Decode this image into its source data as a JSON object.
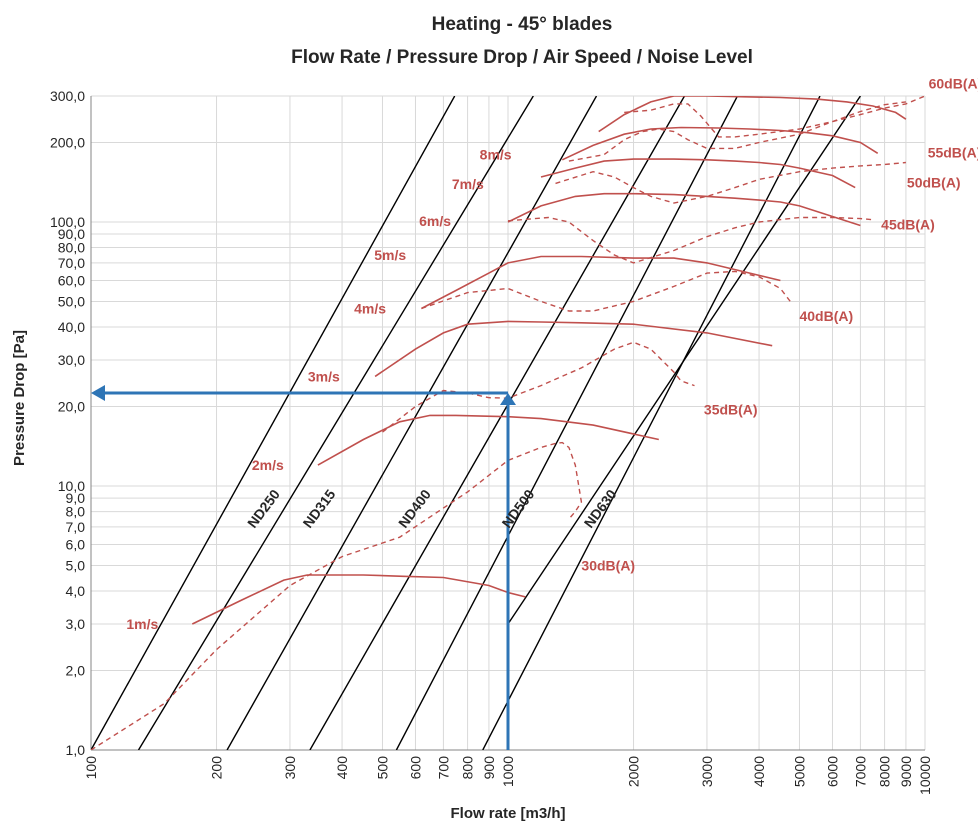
{
  "chart_data": {
    "type": "line",
    "title_line1": "Heating - 45° blades",
    "title_line2": "Flow Rate / Pressure Drop / Air Speed / Noise Level",
    "xlabel": "Flow rate [m3/h]",
    "ylabel": "Pressure Drop [Pa]",
    "x_scale": "log",
    "y_scale": "log",
    "xlim": [
      100,
      10000
    ],
    "ylim": [
      1,
      300
    ],
    "grid": true,
    "x_ticks": [
      {
        "v": 100,
        "label": "100"
      },
      {
        "v": 200,
        "label": "200"
      },
      {
        "v": 300,
        "label": "300"
      },
      {
        "v": 400,
        "label": "400"
      },
      {
        "v": 500,
        "label": "500"
      },
      {
        "v": 600,
        "label": "600"
      },
      {
        "v": 700,
        "label": "700"
      },
      {
        "v": 800,
        "label": "800"
      },
      {
        "v": 900,
        "label": "900"
      },
      {
        "v": 1000,
        "label": "1000"
      },
      {
        "v": 2000,
        "label": "2000"
      },
      {
        "v": 3000,
        "label": "3000"
      },
      {
        "v": 4000,
        "label": "4000"
      },
      {
        "v": 5000,
        "label": "5000"
      },
      {
        "v": 6000,
        "label": "6000"
      },
      {
        "v": 7000,
        "label": "7000"
      },
      {
        "v": 8000,
        "label": "8000"
      },
      {
        "v": 9000,
        "label": "9000"
      },
      {
        "v": 10000,
        "label": "10000"
      }
    ],
    "y_ticks": [
      {
        "v": 1,
        "label": "1,0"
      },
      {
        "v": 2,
        "label": "2,0"
      },
      {
        "v": 3,
        "label": "3,0"
      },
      {
        "v": 4,
        "label": "4,0"
      },
      {
        "v": 5,
        "label": "5,0"
      },
      {
        "v": 6,
        "label": "6,0"
      },
      {
        "v": 7,
        "label": "7,0"
      },
      {
        "v": 8,
        "label": "8,0"
      },
      {
        "v": 9,
        "label": "9,0"
      },
      {
        "v": 10,
        "label": "10,0"
      },
      {
        "v": 20,
        "label": "20,0"
      },
      {
        "v": 30,
        "label": "30,0"
      },
      {
        "v": 40,
        "label": "40,0"
      },
      {
        "v": 50,
        "label": "50,0"
      },
      {
        "v": 60,
        "label": "60,0"
      },
      {
        "v": 70,
        "label": "70,0"
      },
      {
        "v": 80,
        "label": "80,0"
      },
      {
        "v": 90,
        "label": "90,0"
      },
      {
        "v": 100,
        "label": "100,0"
      },
      {
        "v": 200,
        "label": "200,0"
      },
      {
        "v": 300,
        "label": "300,0"
      }
    ],
    "colors": {
      "duct": "#000000",
      "curve": "#c0504d",
      "pointer": "#2e75b6",
      "grid": "#d9d9d9"
    },
    "duct_lines": [
      {
        "name": "ND250",
        "x": [
          100,
          745
        ],
        "y": [
          1,
          300
        ]
      },
      {
        "name": "ND315",
        "x": [
          130,
          1150
        ],
        "y": [
          1,
          300
        ]
      },
      {
        "name": "ND400",
        "x": [
          212,
          1630
        ],
        "y": [
          1,
          300
        ]
      },
      {
        "name": "ND500",
        "x": [
          335,
          2650
        ],
        "y": [
          1,
          300
        ]
      },
      {
        "name": "ND630",
        "x": [
          540,
          3550
        ],
        "y": [
          1,
          300
        ]
      },
      {
        "name": "",
        "x": [
          870,
          5600
        ],
        "y": [
          1,
          300
        ]
      },
      {
        "name": "",
        "x": [
          1000,
          7000
        ],
        "y": [
          3,
          300
        ]
      }
    ],
    "duct_labels": [
      {
        "text": "ND250",
        "x": 265,
        "y": 8
      },
      {
        "text": "ND315",
        "x": 360,
        "y": 8
      },
      {
        "text": "ND400",
        "x": 610,
        "y": 8
      },
      {
        "text": "ND500",
        "x": 1080,
        "y": 8
      },
      {
        "text": "ND630",
        "x": 1700,
        "y": 8
      }
    ],
    "speed_curves": [
      {
        "name": "1m/s",
        "x": [
          175,
          230,
          290,
          330,
          450,
          560,
          700,
          900,
          1000,
          1100
        ],
        "y": [
          3,
          3.7,
          4.4,
          4.6,
          4.6,
          4.55,
          4.5,
          4.2,
          3.95,
          3.8
        ]
      },
      {
        "name": "2m/s",
        "x": [
          350,
          450,
          550,
          650,
          750,
          1000,
          1200,
          1600,
          2300
        ],
        "y": [
          12,
          15,
          17.5,
          18.5,
          18.5,
          18.3,
          18,
          17,
          15
        ]
      },
      {
        "name": "3m/s",
        "x": [
          480,
          600,
          700,
          800,
          1000,
          1200,
          1500,
          2000,
          3000,
          4300
        ],
        "y": [
          26,
          33,
          38,
          41,
          42,
          41.8,
          41.5,
          41,
          38,
          34
        ]
      },
      {
        "name": "4m/s",
        "x": [
          620,
          750,
          900,
          1000,
          1200,
          1500,
          2000,
          2500,
          3000,
          4500
        ],
        "y": [
          47,
          55,
          64,
          70,
          74,
          74,
          73,
          73,
          70,
          60
        ]
      },
      {
        "name": "5m/s",
        "x": [
          1000,
          1200,
          1450,
          1700,
          2000,
          2500,
          3000,
          3500,
          4000,
          4500,
          5000,
          7000
        ],
        "y": [
          100,
          115,
          125,
          128,
          128,
          127,
          125,
          123,
          121,
          119,
          115,
          97
        ]
      },
      {
        "name": "6m/s",
        "x": [
          1200,
          1450,
          1700,
          2000,
          2500,
          3000,
          3500,
          4000,
          4500,
          5000,
          6000,
          6800
        ],
        "y": [
          148,
          160,
          170,
          173,
          173,
          172,
          170,
          168,
          165,
          160,
          150,
          135
        ]
      },
      {
        "name": "7m/s",
        "x": [
          1350,
          1600,
          1900,
          2200,
          2600,
          3200,
          3800,
          4500,
          5200,
          6000,
          7000,
          7700
        ],
        "y": [
          172,
          195,
          215,
          225,
          228,
          227,
          225,
          222,
          218,
          212,
          200,
          182
        ]
      },
      {
        "name": "8m/s",
        "x": [
          1650,
          1900,
          2200,
          2500,
          3000,
          3700,
          4500,
          5500,
          6500,
          7500,
          8500,
          9000
        ],
        "y": [
          220,
          255,
          285,
          300,
          300,
          298,
          296,
          292,
          285,
          275,
          260,
          245
        ]
      }
    ],
    "speed_labels": [
      {
        "text": "1m/s",
        "x": 145,
        "y": 3
      },
      {
        "text": "2m/s",
        "x": 290,
        "y": 12
      },
      {
        "text": "3m/s",
        "x": 395,
        "y": 26
      },
      {
        "text": "4m/s",
        "x": 510,
        "y": 47
      },
      {
        "text": "5m/s",
        "x": 570,
        "y": 75
      },
      {
        "text": "6m/s",
        "x": 730,
        "y": 101
      },
      {
        "text": "7m/s",
        "x": 875,
        "y": 139
      },
      {
        "text": "8m/s",
        "x": 1020,
        "y": 180
      }
    ],
    "noise_curves": [
      {
        "name": "30dB(A)",
        "x": [
          100,
          150,
          200,
          300,
          400,
          550,
          800,
          1000,
          1200,
          1300,
          1350,
          1400,
          1450,
          1500,
          1450,
          1400
        ],
        "y": [
          1,
          1.5,
          2.4,
          4.2,
          5.4,
          6.4,
          9.5,
          12.5,
          14,
          14.5,
          14.6,
          14,
          12,
          8.7,
          8,
          7.5
        ]
      },
      {
        "name": "35dB(A)",
        "x": [
          500,
          600,
          700,
          800,
          900,
          1000,
          1200,
          1500,
          1800,
          2000,
          2200,
          2500,
          2600,
          2800
        ],
        "y": [
          16,
          20,
          23,
          22.5,
          21.6,
          21.5,
          24,
          28,
          33,
          35,
          33,
          27,
          25,
          24
        ]
      },
      {
        "name": "40dB(A)",
        "x": [
          620,
          800,
          1000,
          1200,
          1400,
          1600,
          2000,
          2500,
          3000,
          3500,
          4000,
          4500,
          4800
        ],
        "y": [
          47,
          54,
          56,
          50,
          46,
          46,
          50,
          57,
          64,
          65,
          62,
          56,
          49
        ]
      },
      {
        "name": "45dB(A)",
        "x": [
          1000,
          1250,
          1400,
          1600,
          1800,
          2000,
          2500,
          3000,
          3500,
          4000,
          5000,
          6000,
          7000,
          7500
        ],
        "y": [
          101,
          104,
          100,
          85,
          75,
          70,
          78,
          88,
          95,
          100,
          104,
          104,
          103,
          102
        ]
      },
      {
        "name": "50dB(A)",
        "x": [
          1300,
          1600,
          1800,
          2000,
          2200,
          2500,
          3000,
          3500,
          4000,
          5000,
          6000,
          7000,
          8000,
          9000
        ],
        "y": [
          140,
          155,
          148,
          135,
          125,
          118,
          125,
          135,
          145,
          155,
          160,
          163,
          165,
          168
        ]
      },
      {
        "name": "55dB(A)",
        "x": [
          1400,
          1700,
          1900,
          2100,
          2300,
          2500,
          2700,
          3000,
          3500,
          4000,
          5000,
          6000,
          7000,
          8000,
          9000
        ],
        "y": [
          170,
          180,
          205,
          220,
          225,
          220,
          205,
          190,
          190,
          200,
          215,
          240,
          262,
          278,
          285
        ]
      },
      {
        "name": "60dB(A)",
        "x": [
          1900,
          2200,
          2500,
          2700,
          2900,
          3200,
          3500,
          4000,
          5000,
          6000,
          7000,
          8000,
          9000,
          10000
        ],
        "y": [
          260,
          265,
          280,
          280,
          252,
          210,
          210,
          215,
          225,
          240,
          255,
          270,
          280,
          300
        ]
      }
    ],
    "noise_labels": [
      {
        "text": "30dB(A)",
        "x": 1500,
        "y": 5
      },
      {
        "text": "35dB(A)",
        "x": 2950,
        "y": 19.5
      },
      {
        "text": "40dB(A)",
        "x": 5000,
        "y": 44
      },
      {
        "text": "45dB(A)",
        "x": 7850,
        "y": 98
      },
      {
        "text": "50dB(A)",
        "x": 9050,
        "y": 141
      },
      {
        "text": "55dB(A)",
        "x": 10150,
        "y": 183
      },
      {
        "text": "60dB(A)",
        "x": 10200,
        "y": 335
      }
    ],
    "pointer": {
      "x": 1000,
      "y": 22.5,
      "x_from": 1000,
      "y_from": 1,
      "x_to": 100
    }
  }
}
